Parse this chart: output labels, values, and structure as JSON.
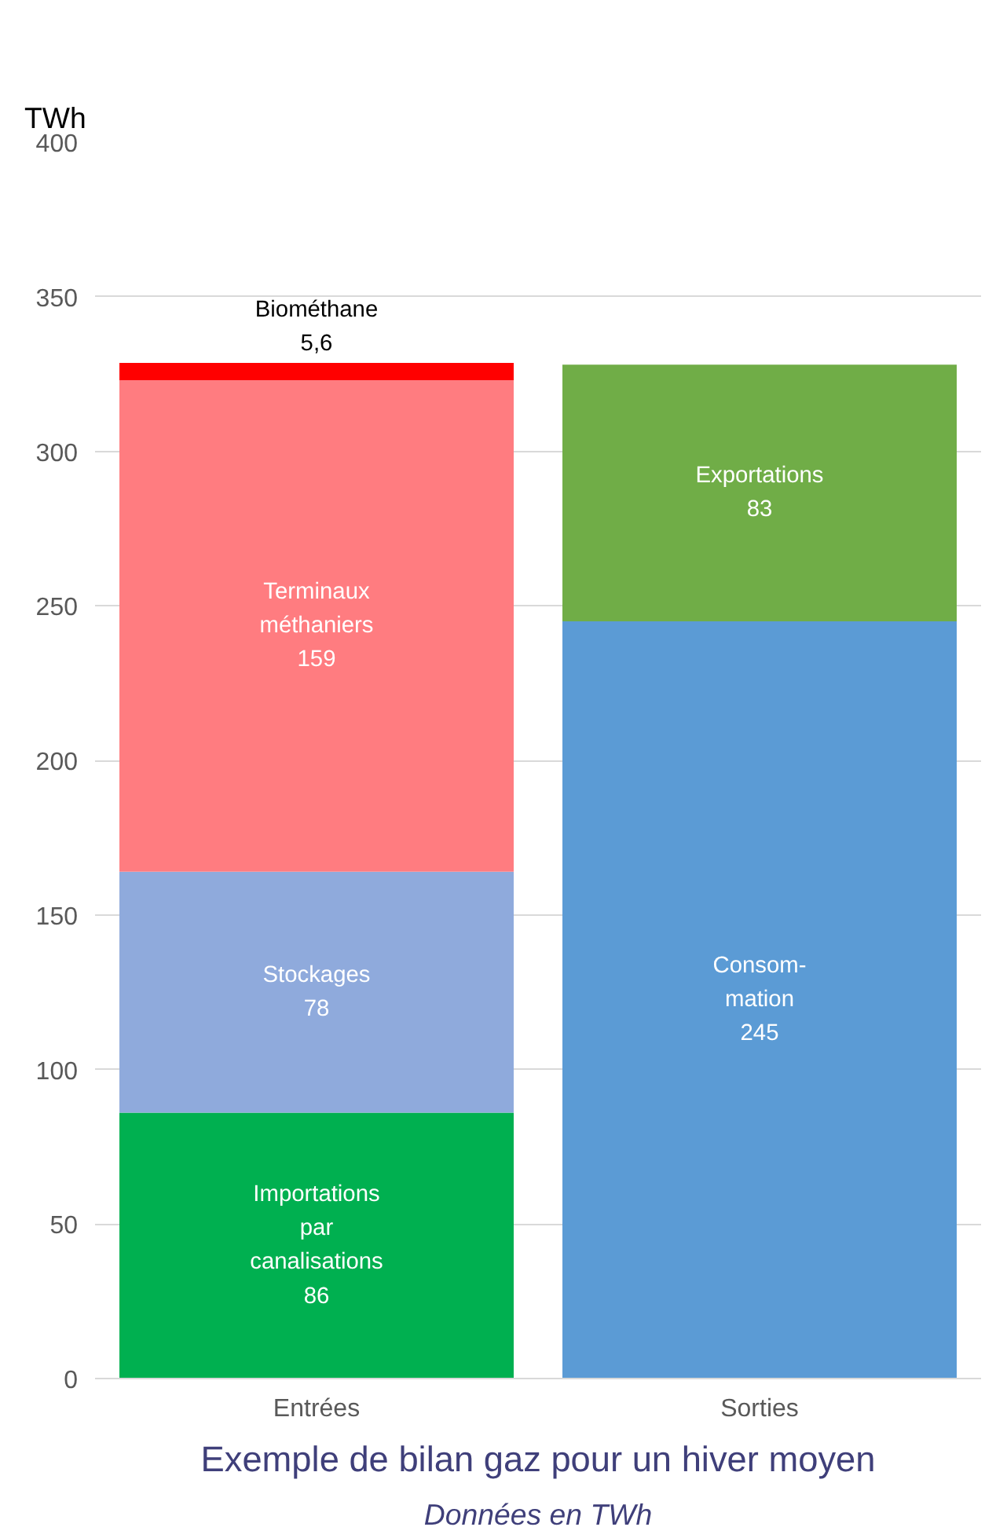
{
  "chart_data": {
    "type": "bar",
    "stacked": true,
    "title": "Exemple de bilan gaz pour un hiver moyen",
    "subtitle": "Données en TWh",
    "ylabel": "TWh",
    "categories": [
      "Entrées",
      "Sorties"
    ],
    "series": [
      {
        "name": "Importations\npar\ncanalisations",
        "color": "#00b050",
        "values": [
          86,
          null
        ],
        "value_labels": [
          "86",
          null
        ]
      },
      {
        "name": "Stockages",
        "color": "#8faadc",
        "values": [
          78,
          null
        ],
        "value_labels": [
          "78",
          null
        ]
      },
      {
        "name": "Terminaux\nméthaniers",
        "color": "#ff7c80",
        "values": [
          159,
          null
        ],
        "value_labels": [
          "159",
          null
        ]
      },
      {
        "name": "Biométhane",
        "color": "#ff0000",
        "values": [
          5.6,
          null
        ],
        "value_labels": [
          "5,6",
          null
        ]
      },
      {
        "name": "Consom-\nmation",
        "color": "#5b9bd5",
        "values": [
          null,
          245
        ],
        "value_labels": [
          null,
          "245"
        ]
      },
      {
        "name": "Exportations",
        "color": "#70ad47",
        "values": [
          null,
          83
        ],
        "value_labels": [
          null,
          "83"
        ]
      }
    ],
    "ylim": [
      0,
      400
    ],
    "yticks": [
      0,
      50,
      100,
      150,
      200,
      250,
      300,
      350,
      400
    ],
    "grid": "y"
  }
}
